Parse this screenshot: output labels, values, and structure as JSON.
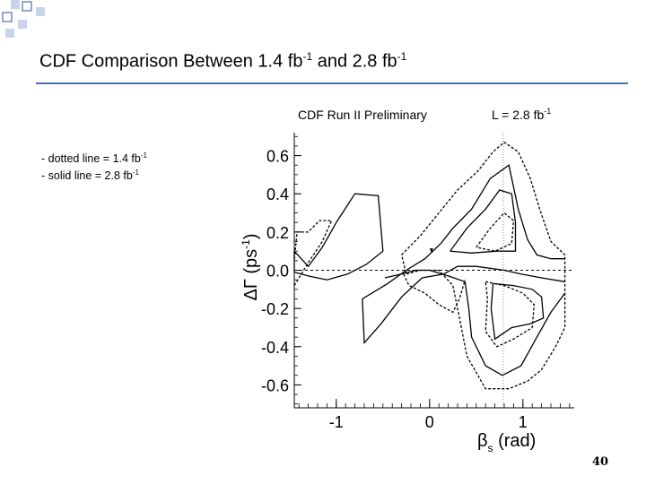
{
  "slide": {
    "title_main": "CDF Comparison Between 1.4 fb",
    "title_sup1": "-1",
    "title_mid": " and 2.8 fb",
    "title_sup2": "-1",
    "legend": [
      {
        "text": "- dotted line = 1.4 fb",
        "sup": "-1"
      },
      {
        "text": "- solid line = 2.8 fb",
        "sup": "-1"
      }
    ],
    "page_number": "40",
    "colors": {
      "accent": "#4a6fb5",
      "decor_light": "#c9d3ea",
      "plot_line": "#000000"
    }
  },
  "chart_data": {
    "type": "contour",
    "header_left": "CDF Run II Preliminary",
    "header_right": "L = 2.8 fb",
    "header_right_sup": "-1",
    "xlabel_symbol": "β",
    "xlabel_sub": "s",
    "xlabel_unit": " (rad)",
    "ylabel_symbol": "ΔΓ",
    "ylabel_unit": " (ps",
    "ylabel_sup": "-1",
    "ylabel_close": ")",
    "xlim": [
      -1.45,
      1.55
    ],
    "ylim": [
      -0.72,
      0.72
    ],
    "x_ticks": [
      -1,
      0,
      1
    ],
    "x_tick_labels": [
      "-1",
      "0",
      "1"
    ],
    "y_ticks": [
      0.6,
      0.4,
      0.2,
      0.0,
      -0.2,
      -0.4,
      -0.6
    ],
    "y_tick_labels": [
      "0.6",
      "0.4",
      "0.2",
      "0.0",
      "-0.2",
      "-0.4",
      "-0.6"
    ],
    "reference_lines": {
      "y": 0.0,
      "x": 0.79
    },
    "best_fit_marker": {
      "x": 0.02,
      "y": 0.1
    },
    "contours": [
      {
        "style": "solid",
        "points": [
          [
            -1.45,
            0.1
          ],
          [
            -1.3,
            0.02
          ],
          [
            -1.15,
            0.12
          ],
          [
            -1.0,
            0.25
          ],
          [
            -0.8,
            0.4
          ],
          [
            -0.55,
            0.39
          ],
          [
            -0.5,
            0.1
          ],
          [
            -0.68,
            0.03
          ],
          [
            -0.88,
            -0.02
          ],
          [
            -1.1,
            -0.05
          ],
          [
            -1.3,
            -0.03
          ],
          [
            -1.45,
            -0.01
          ],
          [
            -1.45,
            0.1
          ]
        ]
      },
      {
        "style": "solid",
        "points": [
          [
            1.45,
            -0.06
          ],
          [
            1.2,
            -0.04
          ],
          [
            0.98,
            -0.02
          ],
          [
            0.8,
            0.0
          ],
          [
            0.5,
            0.02
          ],
          [
            0.3,
            0.02
          ],
          [
            0.15,
            -0.02
          ],
          [
            -0.08,
            -0.04
          ],
          [
            -0.3,
            -0.14
          ],
          [
            -0.52,
            -0.28
          ],
          [
            -0.7,
            -0.38
          ],
          [
            -0.72,
            -0.15
          ],
          [
            -0.45,
            -0.07
          ],
          [
            -0.25,
            0.0
          ],
          [
            -0.05,
            0.06
          ],
          [
            0.12,
            0.14
          ],
          [
            0.25,
            0.22
          ],
          [
            0.45,
            0.32
          ],
          [
            0.65,
            0.48
          ],
          [
            0.85,
            0.55
          ],
          [
            0.95,
            0.32
          ],
          [
            1.05,
            0.16
          ],
          [
            1.15,
            0.08
          ],
          [
            1.3,
            0.06
          ],
          [
            1.45,
            0.06
          ]
        ]
      },
      {
        "style": "solid",
        "points": [
          [
            0.22,
            0.1
          ],
          [
            0.4,
            0.22
          ],
          [
            0.6,
            0.32
          ],
          [
            0.75,
            0.42
          ],
          [
            0.88,
            0.4
          ],
          [
            0.92,
            0.25
          ],
          [
            0.92,
            0.1
          ],
          [
            0.72,
            0.1
          ],
          [
            0.45,
            0.09
          ],
          [
            0.22,
            0.1
          ]
        ]
      },
      {
        "style": "solid",
        "points": [
          [
            0.68,
            -0.07
          ],
          [
            0.9,
            -0.08
          ],
          [
            1.1,
            -0.1
          ],
          [
            1.2,
            -0.14
          ],
          [
            1.22,
            -0.25
          ],
          [
            1.08,
            -0.28
          ],
          [
            0.88,
            -0.3
          ],
          [
            0.7,
            -0.36
          ],
          [
            0.66,
            -0.2
          ],
          [
            0.68,
            -0.07
          ]
        ]
      },
      {
        "style": "solid",
        "points": [
          [
            -0.48,
            -0.04
          ],
          [
            -0.3,
            -0.02
          ],
          [
            -0.15,
            0.0
          ],
          [
            0.0,
            0.0
          ],
          [
            0.2,
            -0.03
          ],
          [
            0.38,
            -0.06
          ],
          [
            0.42,
            -0.2
          ],
          [
            0.45,
            -0.35
          ],
          [
            0.6,
            -0.5
          ],
          [
            0.78,
            -0.55
          ],
          [
            0.98,
            -0.5
          ],
          [
            1.15,
            -0.35
          ],
          [
            1.3,
            -0.22
          ],
          [
            1.45,
            -0.12
          ]
        ]
      },
      {
        "style": "dotted",
        "points": [
          [
            -1.45,
            -0.08
          ],
          [
            -1.3,
            0.04
          ],
          [
            -1.15,
            0.15
          ],
          [
            -1.05,
            0.26
          ],
          [
            -1.18,
            0.26
          ],
          [
            -1.3,
            0.2
          ],
          [
            -1.42,
            0.2
          ],
          [
            -1.45,
            0.05
          ]
        ]
      },
      {
        "style": "dotted",
        "points": [
          [
            -0.3,
            0.08
          ],
          [
            -0.1,
            0.18
          ],
          [
            0.1,
            0.3
          ],
          [
            0.3,
            0.42
          ],
          [
            0.52,
            0.52
          ],
          [
            0.68,
            0.62
          ],
          [
            0.8,
            0.67
          ],
          [
            0.95,
            0.62
          ],
          [
            1.08,
            0.48
          ],
          [
            1.18,
            0.32
          ],
          [
            1.3,
            0.15
          ],
          [
            1.45,
            0.08
          ],
          [
            1.45,
            -0.3
          ],
          [
            1.35,
            -0.4
          ],
          [
            1.2,
            -0.52
          ],
          [
            1.05,
            -0.58
          ],
          [
            0.85,
            -0.62
          ],
          [
            0.6,
            -0.62
          ],
          [
            0.4,
            -0.45
          ],
          [
            0.32,
            -0.25
          ],
          [
            0.25,
            -0.08
          ],
          [
            0.1,
            0.0
          ],
          [
            -0.1,
            0.0
          ],
          [
            -0.25,
            -0.02
          ],
          [
            -0.3,
            0.08
          ]
        ]
      },
      {
        "style": "dotted",
        "points": [
          [
            0.5,
            0.12
          ],
          [
            0.65,
            0.22
          ],
          [
            0.8,
            0.3
          ],
          [
            0.9,
            0.26
          ],
          [
            0.88,
            0.14
          ],
          [
            0.7,
            0.1
          ],
          [
            0.5,
            0.12
          ]
        ]
      },
      {
        "style": "dotted",
        "points": [
          [
            0.6,
            -0.06
          ],
          [
            0.8,
            -0.08
          ],
          [
            1.0,
            -0.12
          ],
          [
            1.12,
            -0.18
          ],
          [
            1.1,
            -0.3
          ],
          [
            0.9,
            -0.36
          ],
          [
            0.72,
            -0.4
          ],
          [
            0.6,
            -0.32
          ],
          [
            0.62,
            -0.15
          ],
          [
            0.6,
            -0.06
          ]
        ]
      },
      {
        "style": "dotted",
        "points": [
          [
            -0.28,
            -0.02
          ],
          [
            -0.22,
            -0.08
          ],
          [
            -0.05,
            -0.12
          ],
          [
            0.1,
            -0.18
          ],
          [
            0.25,
            -0.22
          ],
          [
            0.32,
            -0.15
          ],
          [
            0.38,
            -0.05
          ]
        ]
      }
    ]
  }
}
